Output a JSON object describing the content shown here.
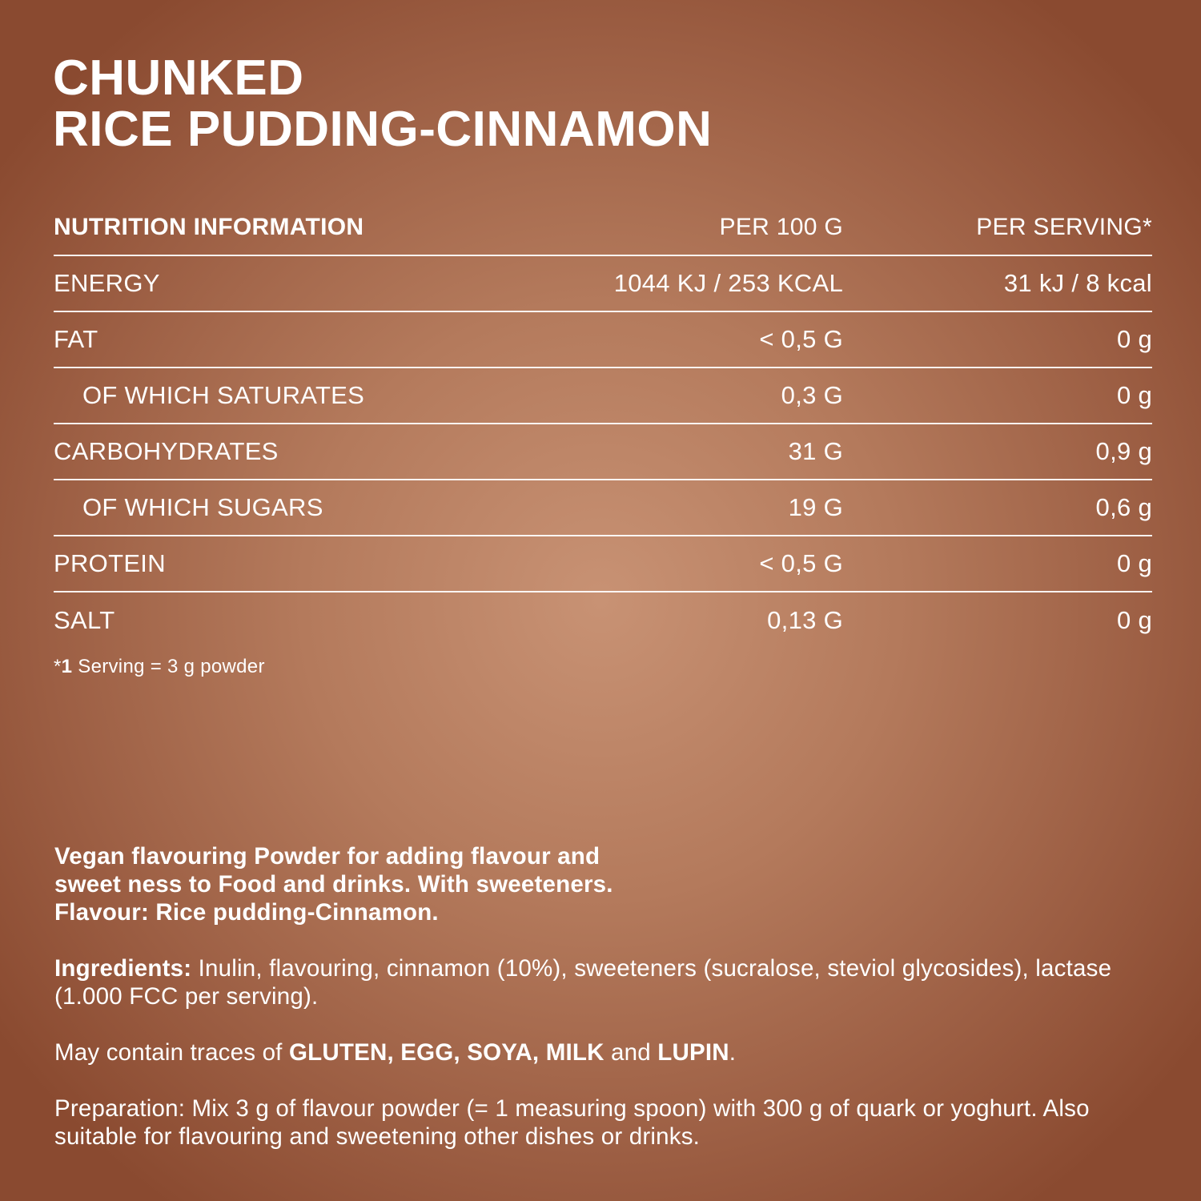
{
  "title": {
    "line1": "CHUNKED",
    "line2": "RICE PUDDING-CINNAMON"
  },
  "table": {
    "headers": {
      "label": "NUTRITION INFORMATION",
      "per100": "PER 100 G",
      "perServing": "PER SERVING*"
    },
    "rows": [
      {
        "label": "ENERGY",
        "per100": "1044 KJ / 253 KCAL",
        "perServing": "31 kJ / 8 kcal"
      },
      {
        "label": "FAT",
        "per100": "< 0,5 G",
        "perServing": "0 g"
      },
      {
        "label": "OF WHICH SATURATES",
        "per100": "0,3 G",
        "perServing": "0 g"
      },
      {
        "label": "CARBOHYDRATES",
        "per100": "31 G",
        "perServing": "0,9 g"
      },
      {
        "label": "OF WHICH SUGARS",
        "per100": "19 G",
        "perServing": "0,6 g"
      },
      {
        "label": "PROTEIN",
        "per100": "< 0,5 G",
        "perServing": "0 g"
      },
      {
        "label": "SALT",
        "per100": "0,13 G",
        "perServing": "0 g"
      }
    ]
  },
  "footnote": {
    "star": "*",
    "number": "1",
    "text": " Serving = 3 g powder"
  },
  "description": {
    "intro_line1": "Vegan flavouring Powder for adding flavour and",
    "intro_line2": "sweet ness to Food and drinks. With sweeteners.",
    "intro_line3": "Flavour: Rice pudding-Cinnamon.",
    "ingredients_label": "Ingredients:",
    "ingredients_text": " Inulin, flavouring, cinnamon (10%), sweeteners (sucralose, steviol glycosides), lactase (1.000 FCC per serving).",
    "traces_prefix": "May contain traces of ",
    "traces_allergens": "GLUTEN, EGG, SOYA, MILK",
    "traces_and": " and ",
    "traces_last": "LUPIN",
    "traces_end": ".",
    "preparation": "Preparation: Mix 3 g of flavour powder (= 1 measuring spoon) with 300 g of quark or yoghurt. Also suitable for flavouring and sweetening other dishes or drinks."
  }
}
